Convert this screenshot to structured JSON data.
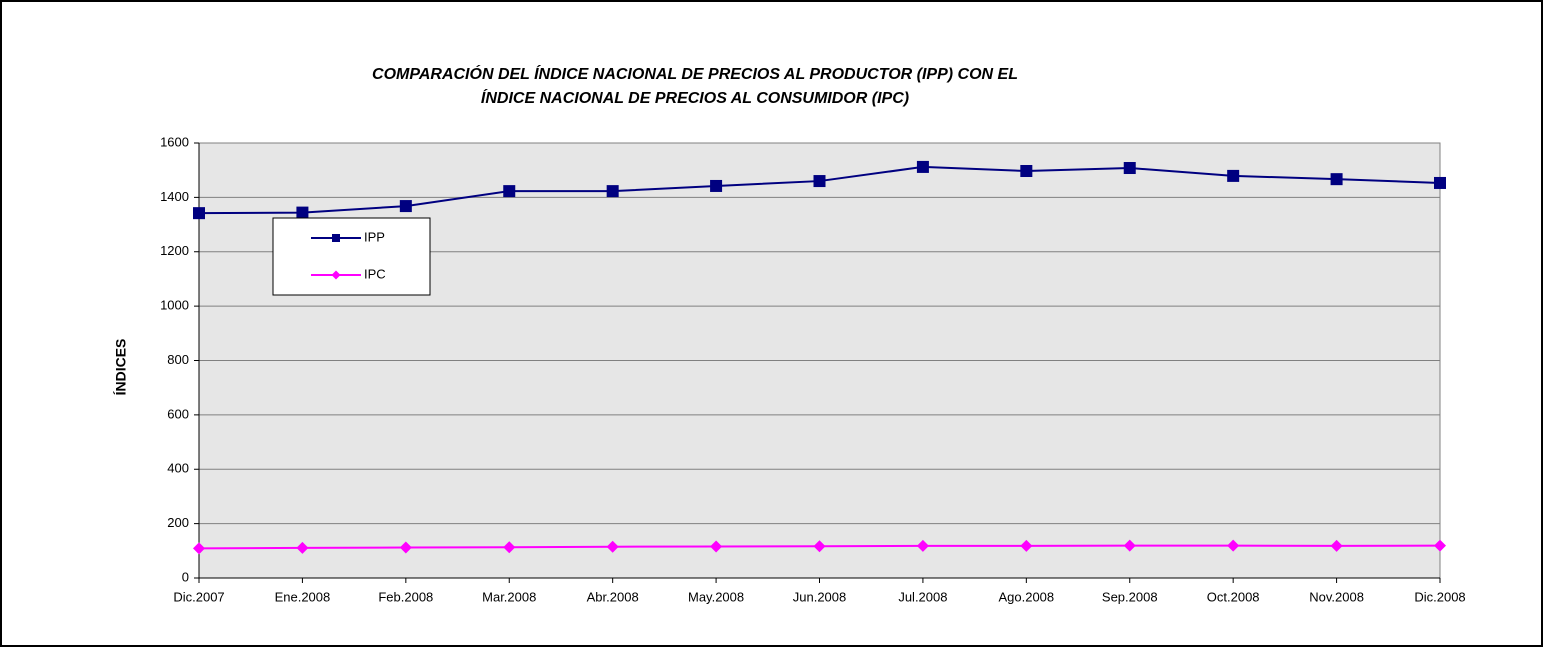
{
  "chart_data": {
    "type": "line",
    "title": [
      "COMPARACIÓN DEL ÍNDICE NACIONAL DE PRECIOS AL PRODUCTOR (IPP) CON EL",
      "ÍNDICE NACIONAL DE PRECIOS AL CONSUMIDOR (IPC)"
    ],
    "y_label": "ÍNDICES",
    "categories": [
      "Dic.2007",
      "Ene.2008",
      "Feb.2008",
      "Mar.2008",
      "Abr.2008",
      "May.2008",
      "Jun.2008",
      "Jul.2008",
      "Ago.2008",
      "Sep.2008",
      "Oct.2008",
      "Nov.2008",
      "Dic.2008"
    ],
    "series": [
      {
        "name": "IPP",
        "color": "#000080",
        "marker": "square",
        "values": [
          1342,
          1344,
          1368,
          1423,
          1423,
          1442,
          1460,
          1512,
          1497,
          1508,
          1479,
          1467,
          1453
        ]
      },
      {
        "name": "IPC",
        "color": "#ff00ff",
        "marker": "diamond",
        "values": [
          109,
          111,
          112,
          113,
          115,
          116,
          117,
          118,
          118,
          119,
          119,
          118,
          119
        ]
      }
    ],
    "ylim": [
      0,
      1600
    ],
    "yticks": [
      0,
      200,
      400,
      600,
      800,
      1000,
      1200,
      1400,
      1600
    ],
    "grid": true,
    "legend": "upper left"
  }
}
